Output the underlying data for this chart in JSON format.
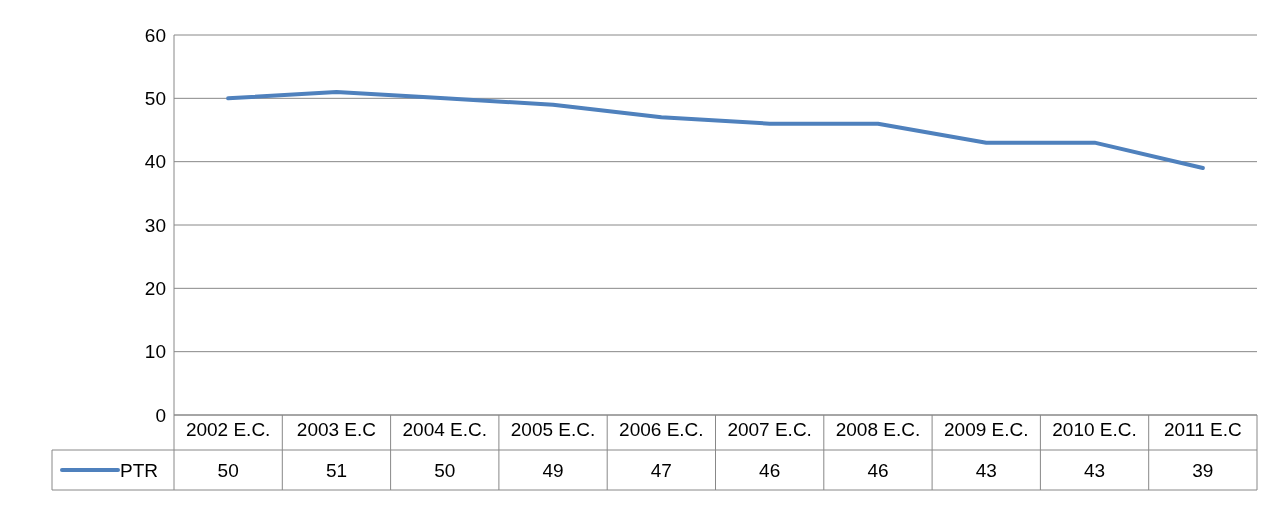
{
  "chart_data": {
    "type": "line",
    "categories": [
      "2002 E.C.",
      "2003 E.C",
      "2004 E.C.",
      "2005 E.C.",
      "2006 E.C.",
      "2007 E.C.",
      "2008 E.C.",
      "2009 E.C.",
      "2010 E.C.",
      "2011 E.C"
    ],
    "series": [
      {
        "name": "PTR",
        "color": "#4f81bd",
        "values": [
          50,
          51,
          50,
          49,
          47,
          46,
          46,
          43,
          43,
          39
        ]
      }
    ],
    "ylim": [
      0,
      60
    ],
    "yticks": [
      0,
      10,
      20,
      30,
      40,
      50,
      60
    ],
    "grid": "y",
    "legend": "bottom",
    "data_labels": true,
    "marker": "none",
    "line_style": "solid"
  }
}
